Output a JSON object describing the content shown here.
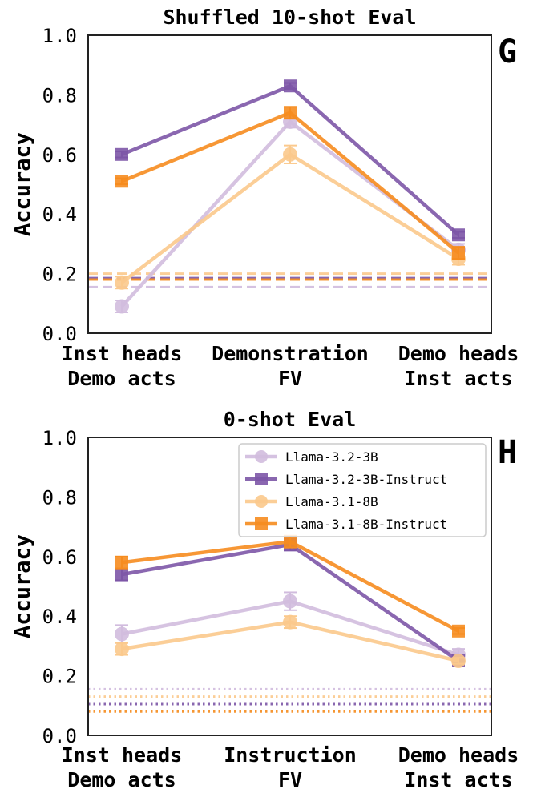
{
  "chart_data": [
    {
      "type": "line",
      "panel_label": "G",
      "title": "Shuffled 10-shot Eval",
      "ylabel": "Accuracy",
      "ylim": [
        0.0,
        1.0
      ],
      "yticks": [
        "0.0",
        "0.2",
        "0.4",
        "0.6",
        "0.8",
        "1.0"
      ],
      "categories": [
        [
          "Inst heads",
          "Demo acts"
        ],
        [
          "Demonstration",
          "FV"
        ],
        [
          "Demo heads",
          "Inst acts"
        ]
      ],
      "series": [
        {
          "name": "Llama-3.2-3B",
          "color": "#d1bcde",
          "marker": "circle",
          "values": [
            0.09,
            0.71,
            0.28
          ],
          "errors": [
            0.02,
            0.02,
            0.02
          ],
          "baseline": 0.155,
          "baseline_style": "dashed"
        },
        {
          "name": "Llama-3.2-3B-Instruct",
          "color": "#7d57a7",
          "marker": "square",
          "values": [
            0.6,
            0.83,
            0.33
          ],
          "errors": [
            0.01,
            0.01,
            0.01
          ],
          "baseline": 0.185,
          "baseline_style": "dashed"
        },
        {
          "name": "Llama-3.1-8B",
          "color": "#fbc98c",
          "marker": "circle",
          "values": [
            0.17,
            0.6,
            0.25
          ],
          "errors": [
            0.02,
            0.03,
            0.02
          ],
          "baseline": 0.2,
          "baseline_style": "dashed"
        },
        {
          "name": "Llama-3.1-8B-Instruct",
          "color": "#f68c1f",
          "marker": "square",
          "values": [
            0.51,
            0.74,
            0.27
          ],
          "errors": [
            0.01,
            0.02,
            0.02
          ],
          "baseline": 0.18,
          "baseline_style": "dashed"
        }
      ]
    },
    {
      "type": "line",
      "panel_label": "H",
      "title": "0-shot Eval",
      "ylabel": "Accuracy",
      "ylim": [
        0.0,
        1.0
      ],
      "yticks": [
        "0.0",
        "0.2",
        "0.4",
        "0.6",
        "0.8",
        "1.0"
      ],
      "categories": [
        [
          "Inst heads",
          "Demo acts"
        ],
        [
          "Instruction",
          "FV"
        ],
        [
          "Demo heads",
          "Inst acts"
        ]
      ],
      "legend_position": "upper-right",
      "series": [
        {
          "name": "Llama-3.2-3B",
          "color": "#d1bcde",
          "marker": "circle",
          "values": [
            0.34,
            0.45,
            0.27
          ],
          "errors": [
            0.03,
            0.03,
            0.02
          ],
          "baseline": 0.155,
          "baseline_style": "dotted"
        },
        {
          "name": "Llama-3.2-3B-Instruct",
          "color": "#7d57a7",
          "marker": "square",
          "values": [
            0.54,
            0.64,
            0.25
          ],
          "errors": [
            0.02,
            0.02,
            0.01
          ],
          "baseline": 0.105,
          "baseline_style": "dotted"
        },
        {
          "name": "Llama-3.1-8B",
          "color": "#fbc98c",
          "marker": "circle",
          "values": [
            0.29,
            0.38,
            0.25
          ],
          "errors": [
            0.02,
            0.02,
            0.01
          ],
          "baseline": 0.13,
          "baseline_style": "dotted"
        },
        {
          "name": "Llama-3.1-8B-Instruct",
          "color": "#f68c1f",
          "marker": "square",
          "values": [
            0.58,
            0.65,
            0.35
          ],
          "errors": [
            0.02,
            0.02,
            0.01
          ],
          "baseline": 0.08,
          "baseline_style": "dotted"
        }
      ]
    }
  ]
}
